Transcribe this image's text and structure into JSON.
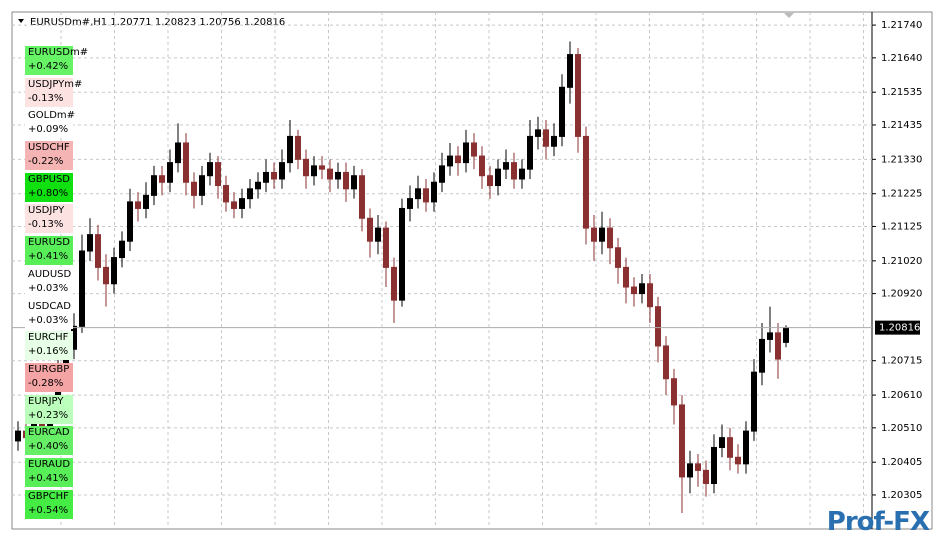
{
  "header": {
    "title": "EURUSDm#,H1  1.20771 1.20823 1.20756 1.20816"
  },
  "watchlist": [
    {
      "name": "EURUSDm#",
      "change": "+0.42%",
      "color": "#66f466"
    },
    {
      "name": "USDJPYm#",
      "change": "-0.13%",
      "color": "#fde2e2"
    },
    {
      "name": "GOLDm#",
      "change": "+0.09%",
      "color": "#ffffff"
    },
    {
      "name": "USDCHF",
      "change": "-0.22%",
      "color": "#f4b4b4"
    },
    {
      "name": "GBPUSD",
      "change": "+0.80%",
      "color": "#10e010"
    },
    {
      "name": "USDJPY",
      "change": "-0.13%",
      "color": "#fde2e2"
    },
    {
      "name": "EURUSD",
      "change": "+0.41%",
      "color": "#58ee58"
    },
    {
      "name": "AUDUSD",
      "change": "+0.03%",
      "color": "#ffffff"
    },
    {
      "name": "USDCAD",
      "change": "+0.03%",
      "color": "#ffffff"
    },
    {
      "name": "EURCHF",
      "change": "+0.16%",
      "color": "#e6ffe6"
    },
    {
      "name": "EURGBP",
      "change": "-0.28%",
      "color": "#f4a4a4"
    },
    {
      "name": "EURJPY",
      "change": "+0.23%",
      "color": "#bcffbc"
    },
    {
      "name": "EURCAD",
      "change": "+0.40%",
      "color": "#66ee66"
    },
    {
      "name": "EURAUD",
      "change": "+0.41%",
      "color": "#58ee58"
    },
    {
      "name": "GBPCHF",
      "change": "+0.54%",
      "color": "#44ec44"
    }
  ],
  "watermark": "Prof-FX",
  "chart_data": {
    "type": "candlestick",
    "up_color": "#000000",
    "down_color": "#8a3030",
    "grid": true,
    "ylim": [
      1.20201,
      1.2178
    ],
    "yticks": [
      {
        "value": 1.2174,
        "label": "1.21740"
      },
      {
        "value": 1.2164,
        "label": "1.21640"
      },
      1.21535,
      {
        "value": 1.21435,
        "label": "1.21435"
      },
      {
        "value": 1.2133,
        "label": "1.21330"
      },
      1.21225,
      {
        "value": 1.21125,
        "label": "1.21125"
      },
      {
        "value": 1.2102,
        "label": "1.21020"
      },
      {
        "value": 1.2092,
        "label": "1.20920"
      },
      1.20715,
      {
        "value": 1.2061,
        "label": "1.20610"
      },
      {
        "value": 1.2051,
        "label": "1.20510"
      },
      1.20405,
      1.20305
    ],
    "current_price": {
      "value": 1.20816,
      "label": "1.20816"
    },
    "open": [
      1.2047,
      1.205,
      1.2048,
      1.2053,
      1.2051,
      1.2058,
      1.207,
      1.2075,
      1.2082,
      1.2105,
      1.211,
      1.21,
      1.2095,
      1.2103,
      1.2108,
      1.212,
      1.2118,
      1.2122,
      1.2128,
      1.2126,
      1.2132,
      1.2138,
      1.2126,
      1.2122,
      1.2128,
      1.2132,
      1.2125,
      1.212,
      1.2118,
      1.2121,
      1.2124,
      1.2126,
      1.2129,
      1.2127,
      1.2132,
      1.214,
      1.2133,
      1.2128,
      1.2131,
      1.213,
      1.2127,
      1.2129,
      1.2124,
      1.2128,
      1.2115,
      1.2108,
      1.2112,
      1.21,
      1.209,
      1.2118,
      1.2121,
      1.2124,
      1.212,
      1.2126,
      1.2131,
      1.2134,
      1.2132,
      1.2138,
      1.2134,
      1.2128,
      1.2125,
      1.213,
      1.2132,
      1.2127,
      1.213,
      1.214,
      1.2142,
      1.2137,
      1.214,
      1.2155,
      1.2165,
      1.214,
      1.2112,
      1.2108,
      1.2112,
      1.2106,
      1.21,
      1.2094,
      1.2092,
      1.2095,
      1.2088,
      1.2076,
      1.2066,
      1.2058,
      1.2036,
      1.204,
      1.2038,
      1.2034,
      1.2045,
      1.2048,
      1.2042,
      1.204,
      1.205,
      1.2068,
      1.2078,
      1.208,
      1.20771
    ],
    "high": [
      1.2053,
      1.2053,
      1.2056,
      1.2056,
      1.2061,
      1.2074,
      1.2079,
      1.2086,
      1.211,
      1.2115,
      1.2113,
      1.2104,
      1.2106,
      1.2111,
      1.2124,
      1.2123,
      1.2126,
      1.2131,
      1.2131,
      1.2136,
      1.2144,
      1.2141,
      1.2129,
      1.2131,
      1.2135,
      1.2134,
      1.2128,
      1.2123,
      1.2124,
      1.2127,
      1.2129,
      1.2133,
      1.2132,
      1.2136,
      1.2145,
      1.2142,
      1.2136,
      1.2134,
      1.2134,
      1.2133,
      1.2132,
      1.2132,
      1.2131,
      1.213,
      1.2118,
      1.2116,
      1.2114,
      1.2103,
      1.2121,
      1.2125,
      1.2128,
      1.2127,
      1.2129,
      1.2135,
      1.2138,
      1.2137,
      1.2142,
      1.2141,
      1.2137,
      1.2131,
      1.2133,
      1.2136,
      1.2135,
      1.2133,
      1.2145,
      1.2146,
      1.2145,
      1.2144,
      1.2159,
      1.2169,
      1.2167,
      1.2143,
      1.2116,
      1.2117,
      1.2115,
      1.2109,
      1.2103,
      1.2097,
      1.2098,
      1.2098,
      1.2091,
      1.2079,
      1.2069,
      1.2061,
      1.2044,
      1.2043,
      1.2041,
      1.2049,
      1.2052,
      1.2051,
      1.2046,
      1.2053,
      1.2072,
      1.2083,
      1.2088,
      1.2083,
      1.20823
    ],
    "low": [
      1.2044,
      1.2045,
      1.2045,
      1.2046,
      1.2048,
      1.2055,
      1.2067,
      1.2072,
      1.208,
      1.2102,
      1.2096,
      1.2088,
      1.2092,
      1.21,
      1.2105,
      1.2114,
      1.2115,
      1.2119,
      1.2122,
      1.2123,
      1.2129,
      1.2122,
      1.2118,
      1.2119,
      1.2125,
      1.2121,
      1.2117,
      1.2115,
      1.2115,
      1.2118,
      1.2121,
      1.2123,
      1.2124,
      1.2124,
      1.2129,
      1.213,
      1.2124,
      1.2125,
      1.2127,
      1.2123,
      1.2124,
      1.212,
      1.2121,
      1.2111,
      1.2103,
      1.2104,
      1.2094,
      1.2083,
      1.2088,
      1.2114,
      1.2118,
      1.2117,
      1.2117,
      1.2123,
      1.2128,
      1.2128,
      1.2129,
      1.213,
      1.2124,
      1.2121,
      1.2122,
      1.2127,
      1.2124,
      1.2124,
      1.2127,
      1.2136,
      1.2133,
      1.2134,
      1.2137,
      1.215,
      1.2135,
      1.2107,
      1.2102,
      1.2104,
      1.2101,
      1.2095,
      1.2089,
      1.2088,
      1.2089,
      1.2083,
      1.2071,
      1.2061,
      1.2052,
      1.2025,
      1.2031,
      1.2033,
      1.203,
      1.2031,
      1.2042,
      1.2038,
      1.2037,
      1.2037,
      1.2047,
      1.2064,
      1.2074,
      1.2066,
      1.20756
    ],
    "close": [
      1.205,
      1.2048,
      1.2053,
      1.2051,
      1.2058,
      1.207,
      1.2075,
      1.2082,
      1.2105,
      1.211,
      1.21,
      1.2095,
      1.2103,
      1.2108,
      1.212,
      1.2118,
      1.2122,
      1.2128,
      1.2126,
      1.2132,
      1.2138,
      1.2126,
      1.2122,
      1.2128,
      1.2132,
      1.2125,
      1.212,
      1.2118,
      1.2121,
      1.2124,
      1.2126,
      1.2129,
      1.2127,
      1.2132,
      1.214,
      1.2133,
      1.2128,
      1.2131,
      1.213,
      1.2127,
      1.2129,
      1.2124,
      1.2128,
      1.2115,
      1.2108,
      1.2112,
      1.21,
      1.209,
      1.2118,
      1.2121,
      1.2124,
      1.212,
      1.2126,
      1.2131,
      1.2134,
      1.2132,
      1.2138,
      1.2134,
      1.2128,
      1.2125,
      1.213,
      1.2132,
      1.2127,
      1.213,
      1.214,
      1.2142,
      1.2137,
      1.214,
      1.2155,
      1.2165,
      1.214,
      1.2112,
      1.2108,
      1.2112,
      1.2106,
      1.21,
      1.2094,
      1.2092,
      1.2095,
      1.2088,
      1.2076,
      1.2066,
      1.2058,
      1.2036,
      1.204,
      1.2038,
      1.2034,
      1.2045,
      1.2048,
      1.2042,
      1.204,
      1.205,
      1.2068,
      1.2078,
      1.208,
      1.2072,
      1.20816
    ]
  }
}
